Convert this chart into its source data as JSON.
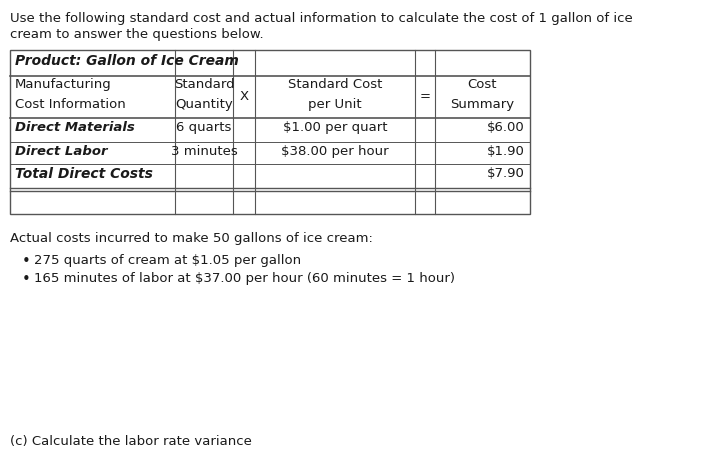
{
  "intro_line1": "Use the following standard cost and actual information to calculate the cost of 1 gallon of ice",
  "intro_line2": "cream to answer the questions below.",
  "product_label": "Product: Gallon of Ice Cream",
  "hdr1_col0": "Manufacturing",
  "hdr1_col1": "Standard",
  "hdr1_x": "X",
  "hdr1_col3": "Standard Cost",
  "hdr1_eq": "=",
  "hdr1_col4": "Cost",
  "hdr2_col0": "Cost Information",
  "hdr2_col1": "Quantity",
  "hdr2_col3": "per Unit",
  "hdr2_col4": "Summary",
  "dm_label": "Direct Materials",
  "dm_qty": "6 quarts",
  "dm_rate": "$1.00 per quart",
  "dm_cost": "$6.00",
  "dl_label": "Direct Labor",
  "dl_qty": "3 minutes",
  "dl_rate": "$38.00 per hour",
  "dl_cost": "$1.90",
  "tdc_label": "Total Direct Costs",
  "tdc_cost": "$7.90",
  "actual_header": "Actual costs incurred to make 50 gallons of ice cream:",
  "bullet1": "275 quarts of cream at $1.05 per gallon",
  "bullet2": "165 minutes of labor at $37.00 per hour (60 minutes = 1 hour)",
  "footer": "(c) Calculate the labor rate variance",
  "bg_color": "#ffffff",
  "text_color": "#1a1a1a",
  "line_color": "#555555",
  "font_size": 9.5
}
